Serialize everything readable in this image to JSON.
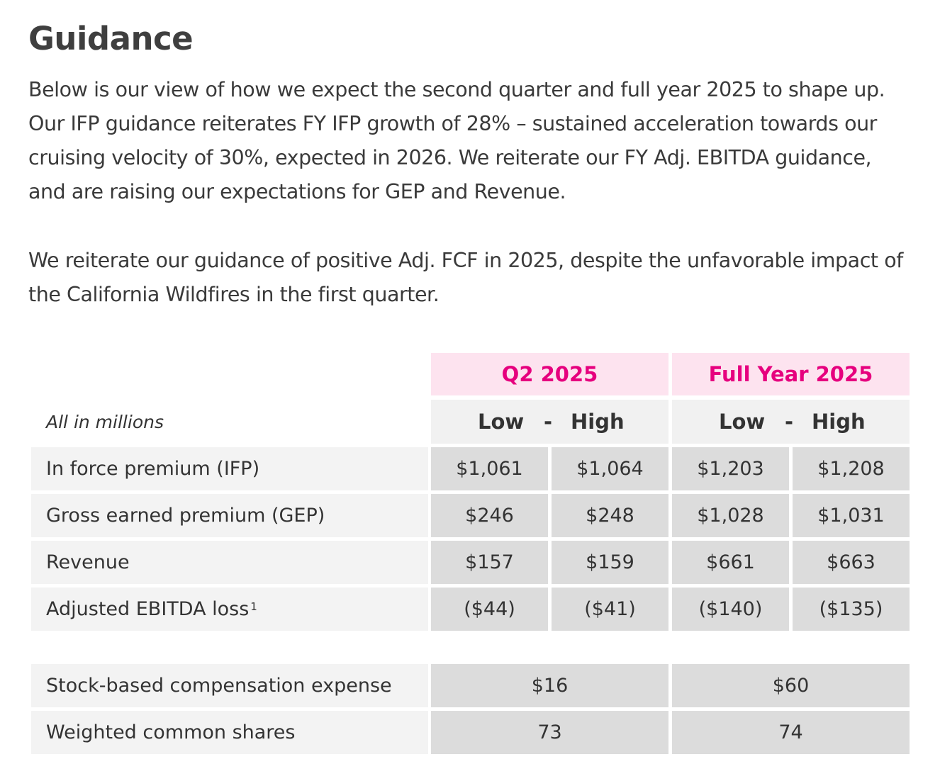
{
  "title": "Guidance",
  "paragraphs": [
    "Below is our view of how we expect the second quarter and full year 2025 to shape up. Our IFP guidance reiterates FY IFP growth of 28% – sustained acceleration towards our cruising velocity of 30%, expected in 2026. We reiterate our FY Adj. EBITDA guidance, and are raising our expectations for GEP and Revenue.",
    "We reiterate our guidance of positive Adj. FCF in 2025, despite the unfavorable impact of the California Wildfires in the first quarter."
  ],
  "table": {
    "units_label": "All in millions",
    "periods": [
      "Q2 2025",
      "Full Year 2025"
    ],
    "range_labels": {
      "low": "Low",
      "sep": "-",
      "high": "High"
    },
    "rows": [
      {
        "label": "In force premium (IFP)",
        "values": [
          "$1,061",
          "$1,064",
          "$1,203",
          "$1,208"
        ]
      },
      {
        "label": "Gross earned premium (GEP)",
        "values": [
          "$246",
          "$248",
          "$1,028",
          "$1,031"
        ]
      },
      {
        "label": "Revenue",
        "values": [
          "$157",
          "$159",
          "$661",
          "$663"
        ]
      },
      {
        "label": "Adjusted EBITDA loss",
        "footnote": "1",
        "values": [
          "($44)",
          "($41)",
          "($140)",
          "($135)"
        ]
      }
    ],
    "rows2": [
      {
        "label": "Stock-based compensation expense",
        "values": [
          "$16",
          "$60"
        ]
      },
      {
        "label": "Weighted common shares",
        "values": [
          "73",
          "74"
        ]
      }
    ]
  }
}
